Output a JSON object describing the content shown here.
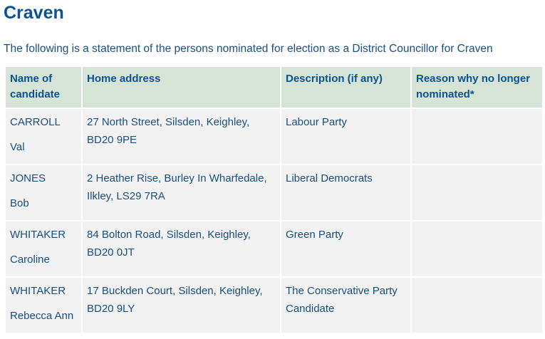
{
  "title": "Craven",
  "intro": "The following is a statement of the persons nominated for election as a District Councillor for Craven",
  "table": {
    "headers": [
      "Name of candidate",
      "Home address",
      "Description (if any)",
      "Reason why no longer nominated*"
    ],
    "rows": [
      {
        "surname": "CARROLL",
        "forenames": "Val",
        "address": "27 North Street, Silsden, Keighley, BD20 9PE",
        "description": "Labour Party",
        "reason": ""
      },
      {
        "surname": "JONES",
        "forenames": "Bob",
        "address": "2 Heather Rise, Burley In Wharfedale, Ilkley, LS29 7RA",
        "description": "Liberal Democrats",
        "reason": ""
      },
      {
        "surname": "WHITAKER",
        "forenames": "Caroline",
        "address": "84 Bolton Road, Silsden, Keighley, BD20 0JT",
        "description": "Green Party",
        "reason": ""
      },
      {
        "surname": "WHITAKER",
        "forenames": "Rebecca Ann",
        "address": "17 Buckden Court, Silsden, Keighley, BD20 9LY",
        "description": "The Conservative Party Candidate",
        "reason": ""
      }
    ]
  }
}
